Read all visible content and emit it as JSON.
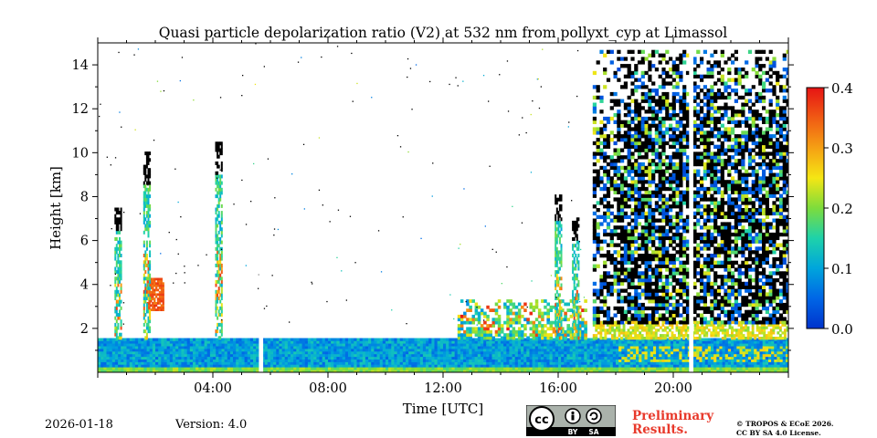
{
  "chart_data": {
    "type": "heatmap",
    "title": "Quasi particle depolarization ratio (V2) at 532 nm from pollyxt_cyp at Limassol",
    "xlabel": "Time [UTC]",
    "ylabel": "Height [km]",
    "x_unit": "hours UTC",
    "xlim": [
      0,
      24
    ],
    "ylim": [
      0,
      15
    ],
    "x_ticks": [
      {
        "value": 4,
        "label": "04:00"
      },
      {
        "value": 8,
        "label": "08:00"
      },
      {
        "value": 12,
        "label": "12:00"
      },
      {
        "value": 16,
        "label": "16:00"
      },
      {
        "value": 20,
        "label": "20:00"
      }
    ],
    "y_ticks": [
      {
        "value": 2,
        "label": "2"
      },
      {
        "value": 4,
        "label": "4"
      },
      {
        "value": 6,
        "label": "6"
      },
      {
        "value": 8,
        "label": "8"
      },
      {
        "value": 10,
        "label": "10"
      },
      {
        "value": 12,
        "label": "12"
      },
      {
        "value": 14,
        "label": "14"
      }
    ],
    "colorbar": {
      "vmin": 0.0,
      "vmax": 0.4,
      "colormap": "jet",
      "ticks": [
        "0.0",
        "0.1",
        "0.2",
        "0.3",
        "0.4"
      ],
      "colors": [
        "#0033cc",
        "#00a5dc",
        "#46d246",
        "#f5e614",
        "#f08c14",
        "#e62814"
      ]
    },
    "no_data_gaps_hours": [
      [
        5.6,
        5.75
      ],
      [
        20.55,
        20.7
      ]
    ],
    "features": [
      {
        "name": "boundary layer",
        "start_h": 0,
        "end_h": 24,
        "top_km": 1.5,
        "depol": 0.1
      },
      {
        "name": "residual layer",
        "start_h": 12.5,
        "end_h": 17,
        "top_km": 3.3,
        "depol": 0.15
      },
      {
        "name": "dust plume",
        "start_h": 1.7,
        "end_h": 2.3,
        "base_km": 2.8,
        "top_km": 4.3,
        "depol": 0.38
      },
      {
        "name": "cirrus / high clouds",
        "start_h": 17.2,
        "end_h": 24,
        "base_km": 2.2,
        "top_km": 14.6,
        "depol": 0.05
      },
      {
        "name": "convective plumes",
        "times_h": [
          0.7,
          1.7,
          4.2,
          16.0,
          16.6
        ],
        "top_km": [
          7.5,
          10.0,
          10.5,
          8.0,
          7.0
        ]
      }
    ]
  },
  "footer": {
    "date": "2026-01-18",
    "version": "Version: 4.0",
    "preliminary": [
      "Preliminary",
      "Results."
    ],
    "copyright": [
      "© TROPOS & ECoE 2026.",
      "CC BY SA 4.0 License."
    ],
    "license_badge": [
      "BY",
      "SA"
    ]
  }
}
